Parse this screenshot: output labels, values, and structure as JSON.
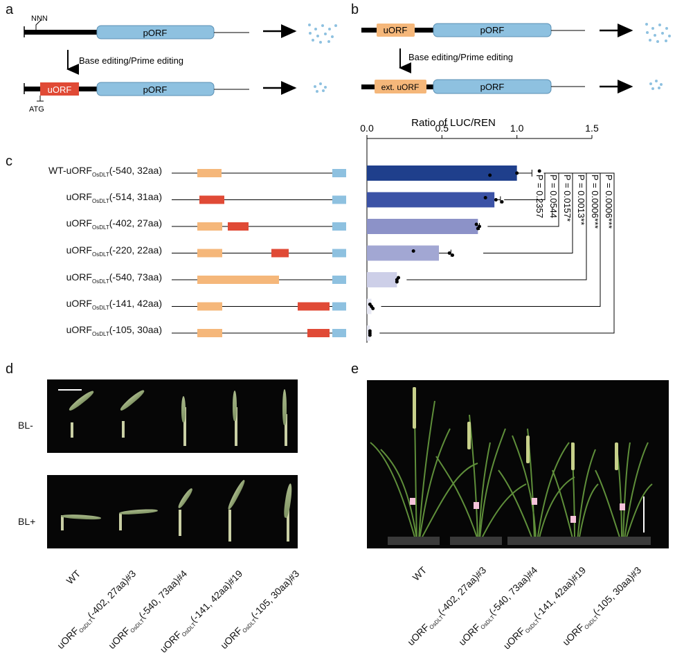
{
  "panel_letters": {
    "a": "a",
    "b": "b",
    "c": "c",
    "d": "d",
    "e": "e"
  },
  "panel_a": {
    "top_label": "NNN",
    "bottom_label": "ATG",
    "porf_top": "pORF",
    "porf_bottom": "pORF",
    "uorf": "uORF",
    "editing_label": "Base editing/Prime editing"
  },
  "panel_b": {
    "uorf": "uORF",
    "ext_uorf": "ext. uORF",
    "porf_top": "pORF",
    "porf_bottom": "pORF",
    "editing_label": "Base editing/Prime editing"
  },
  "panel_c": {
    "constructs": [
      {
        "prefix": "WT-uORF",
        "sub": "OsDLT",
        "suffix": "(-540, 32aa)"
      },
      {
        "prefix": "uORF",
        "sub": "OsDLT",
        "suffix": "(-514, 31aa)"
      },
      {
        "prefix": "uORF",
        "sub": "OsDLT",
        "suffix": "(-402, 27aa)"
      },
      {
        "prefix": "uORF",
        "sub": "OsDLT",
        "suffix": "(-220, 22aa)"
      },
      {
        "prefix": "uORF",
        "sub": "OsDLT",
        "suffix": "(-540, 73aa)"
      },
      {
        "prefix": "uORF",
        "sub": "OsDLT",
        "suffix": "(-141, 42aa)"
      },
      {
        "prefix": "uORF",
        "sub": "OsDLT",
        "suffix": "(-105, 30aa)"
      }
    ],
    "pvalues": [
      "P = 0.2357",
      "P = 0.0544",
      "P = 0.0157*",
      "P = 0.0013**",
      "P = 0.0006***",
      "P = 0.0006***"
    ]
  },
  "chart_data": {
    "type": "bar",
    "orientation": "horizontal",
    "title": "Ratio of LUC/REN",
    "xlim": [
      0,
      1.5
    ],
    "ticks": [
      0.0,
      0.5,
      1.0,
      1.5
    ],
    "tick_labels": [
      "0.0",
      "0.5",
      "1.0",
      "1.5"
    ],
    "categories": [
      "WT-uORF(-540, 32aa)",
      "uORF(-514, 31aa)",
      "uORF(-402, 27aa)",
      "uORF(-220, 22aa)",
      "uORF(-540, 73aa)",
      "uORF(-141, 42aa)",
      "uORF(-105, 30aa)"
    ],
    "values": [
      1.0,
      0.85,
      0.74,
      0.48,
      0.2,
      0.03,
      0.02
    ],
    "errors": [
      0.1,
      0.04,
      0.01,
      0.08,
      0.0,
      0.0,
      0.0
    ],
    "points": [
      [
        1.15,
        1.0,
        0.82
      ],
      [
        0.79,
        0.86,
        0.9
      ],
      [
        0.73,
        0.75,
        0.74
      ],
      [
        0.31,
        0.55,
        0.57
      ],
      [
        0.21,
        0.2,
        0.2
      ],
      [
        0.02,
        0.03,
        0.04
      ],
      [
        0.02,
        0.02,
        0.02
      ]
    ],
    "colors": [
      "#1f3f8c",
      "#3b52a6",
      "#8c92c8",
      "#a2a7d3",
      "#cdcfe8",
      "#e6e7f3",
      "#e6e7f3"
    ]
  },
  "panel_d": {
    "row_labels": [
      "BL-",
      "BL+"
    ],
    "x_labels": [
      {
        "prefix": "WT",
        "sub": "",
        "suffix": ""
      },
      {
        "prefix": "uORF",
        "sub": "OsDLT",
        "suffix": "(-402, 27aa)#3"
      },
      {
        "prefix": "uORF",
        "sub": "OsDLT",
        "suffix": "(-540, 73aa)#4"
      },
      {
        "prefix": "uORF",
        "sub": "OsDLT",
        "suffix": "(-141, 42aa)#19"
      },
      {
        "prefix": "uORF",
        "sub": "OsDLT",
        "suffix": "(-105, 30aa)#3"
      }
    ]
  },
  "panel_e": {
    "x_labels": [
      {
        "prefix": "WT",
        "sub": "",
        "suffix": ""
      },
      {
        "prefix": "uORF",
        "sub": "OsDLT",
        "suffix": "(-402, 27aa)#3"
      },
      {
        "prefix": "uORF",
        "sub": "OsDLT",
        "suffix": "(-540, 73aa)#4"
      },
      {
        "prefix": "uORF",
        "sub": "OsDLT",
        "suffix": "(-141, 42aa)#19"
      },
      {
        "prefix": "uORF",
        "sub": "OsDLT",
        "suffix": "(-105, 30aa)#3"
      }
    ]
  }
}
